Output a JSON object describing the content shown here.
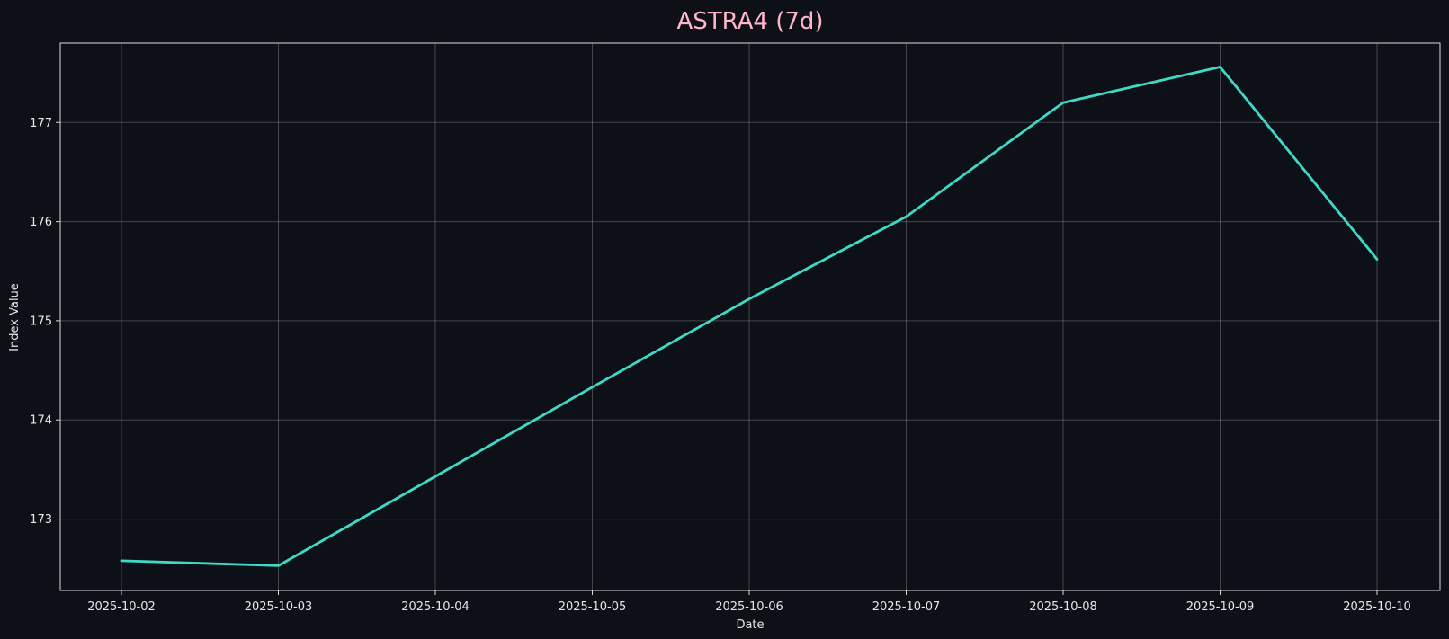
{
  "chart_data": {
    "type": "line",
    "title": "ASTRA4 (7d)",
    "xlabel": "Date",
    "ylabel": "Index Value",
    "x": [
      "2025-10-02",
      "2025-10-03",
      "2025-10-04",
      "2025-10-05",
      "2025-10-06",
      "2025-10-07",
      "2025-10-08",
      "2025-10-09",
      "2025-10-10"
    ],
    "y": [
      172.58,
      172.53,
      173.43,
      174.33,
      175.22,
      176.05,
      177.2,
      177.56,
      175.62
    ],
    "x_ticks": [
      "2025-10-02",
      "2025-10-03",
      "2025-10-04",
      "2025-10-05",
      "2025-10-06",
      "2025-10-07",
      "2025-10-08",
      "2025-10-09",
      "2025-10-10"
    ],
    "y_ticks": [
      173,
      174,
      175,
      176,
      177
    ],
    "ylim": [
      172.28,
      177.8
    ],
    "grid": true,
    "colors": {
      "background": "#0d1117",
      "line": "#3fd9c8",
      "title": "#ffb6c9",
      "text": "#e6e6e6"
    }
  }
}
